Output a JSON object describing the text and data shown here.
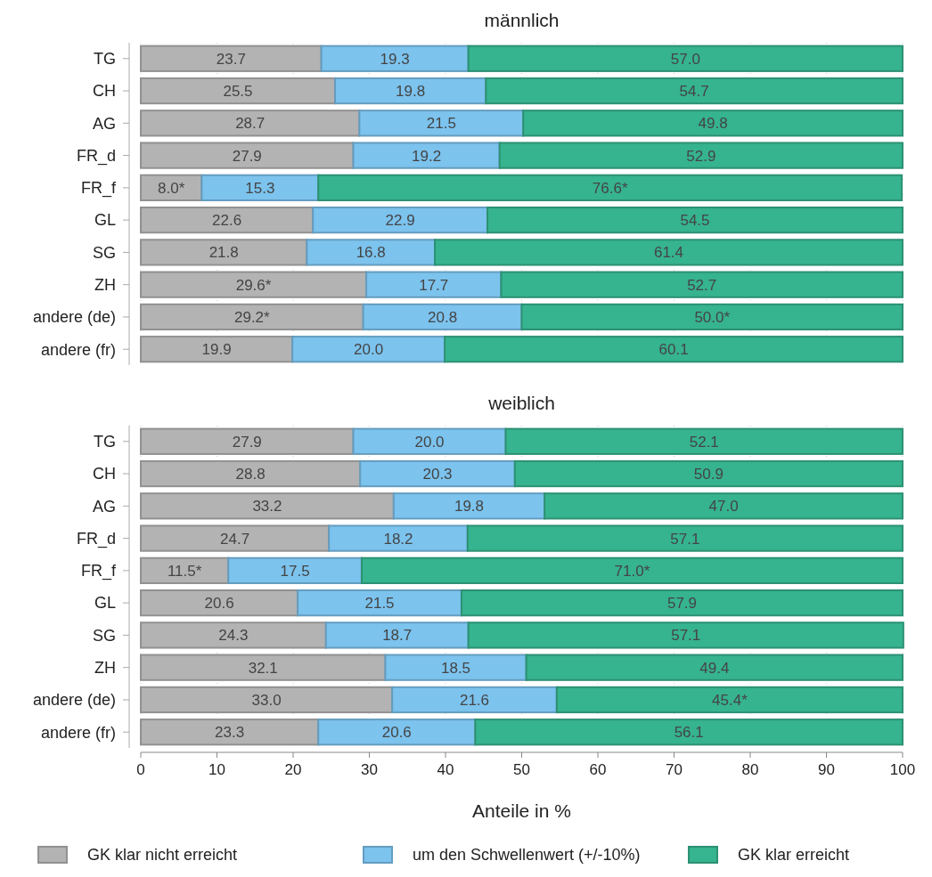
{
  "chart_data": [
    {
      "type": "bar",
      "orientation": "horizontal",
      "stacked": true,
      "title": "männlich",
      "categories": [
        "TG",
        "CH",
        "AG",
        "FR_d",
        "FR_f",
        "GL",
        "SG",
        "ZH",
        "andere (de)",
        "andere (fr)"
      ],
      "series": [
        {
          "color": "#b3b3b3",
          "values": [
            23.7,
            25.5,
            28.7,
            27.9,
            8.0,
            22.6,
            21.8,
            29.6,
            29.2,
            19.9
          ],
          "value_labels": [
            "23.7",
            "25.5",
            "28.7",
            "27.9",
            "8.0*",
            "22.6",
            "21.8",
            "29.6*",
            "29.2*",
            "19.9"
          ]
        },
        {
          "color": "#7cc3ee",
          "values": [
            19.3,
            19.8,
            21.5,
            19.2,
            15.3,
            22.9,
            16.8,
            17.7,
            20.8,
            20.0
          ],
          "value_labels": [
            "19.3",
            "19.8",
            "21.5",
            "19.2",
            "15.3",
            "22.9",
            "16.8",
            "17.7",
            "20.8",
            "20.0"
          ]
        },
        {
          "color": "#36b38f",
          "values": [
            57.0,
            54.7,
            49.8,
            52.9,
            76.6,
            54.5,
            61.4,
            52.7,
            50.0,
            60.1
          ],
          "value_labels": [
            "57.0",
            "54.7",
            "49.8",
            "52.9",
            "76.6*",
            "54.5",
            "61.4",
            "52.7",
            "50.0*",
            "60.1"
          ]
        }
      ],
      "xlim": [
        0,
        100
      ],
      "xticks": [
        0,
        10,
        20,
        30,
        40,
        50,
        60,
        70,
        80,
        90,
        100
      ],
      "grid": "x",
      "tick_labels": "y"
    },
    {
      "type": "bar",
      "orientation": "horizontal",
      "stacked": true,
      "title": "weiblich",
      "xlabel": "Anteile in %",
      "categories": [
        "TG",
        "CH",
        "AG",
        "FR_d",
        "FR_f",
        "GL",
        "SG",
        "ZH",
        "andere (de)",
        "andere (fr)"
      ],
      "series": [
        {
          "name": "GK klar nicht erreicht",
          "color": "#b3b3b3",
          "values": [
            27.9,
            28.8,
            33.2,
            24.7,
            11.5,
            20.6,
            24.3,
            32.1,
            33.0,
            23.3
          ],
          "value_labels": [
            "27.9",
            "28.8",
            "33.2",
            "24.7",
            "11.5*",
            "20.6",
            "24.3",
            "32.1",
            "33.0",
            "23.3"
          ]
        },
        {
          "name": "um den Schwellenwert (+/-10%)",
          "color": "#7cc3ee",
          "values": [
            20.0,
            20.3,
            19.8,
            18.2,
            17.5,
            21.5,
            18.7,
            18.5,
            21.6,
            20.6
          ],
          "value_labels": [
            "20.0",
            "20.3",
            "19.8",
            "18.2",
            "17.5",
            "21.5",
            "18.7",
            "18.5",
            "21.6",
            "20.6"
          ]
        },
        {
          "name": "GK klar erreicht",
          "color": "#36b38f",
          "values": [
            52.1,
            50.9,
            47.0,
            57.1,
            71.0,
            57.9,
            57.1,
            49.4,
            45.4,
            56.1
          ],
          "value_labels": [
            "52.1",
            "50.9",
            "47.0",
            "57.1",
            "71.0*",
            "57.9",
            "57.1",
            "49.4",
            "45.4*",
            "56.1"
          ]
        }
      ],
      "xlim": [
        0,
        100
      ],
      "xticks": [
        0,
        10,
        20,
        30,
        40,
        50,
        60,
        70,
        80,
        90,
        100
      ],
      "grid": "x",
      "legend": "bottom"
    }
  ]
}
